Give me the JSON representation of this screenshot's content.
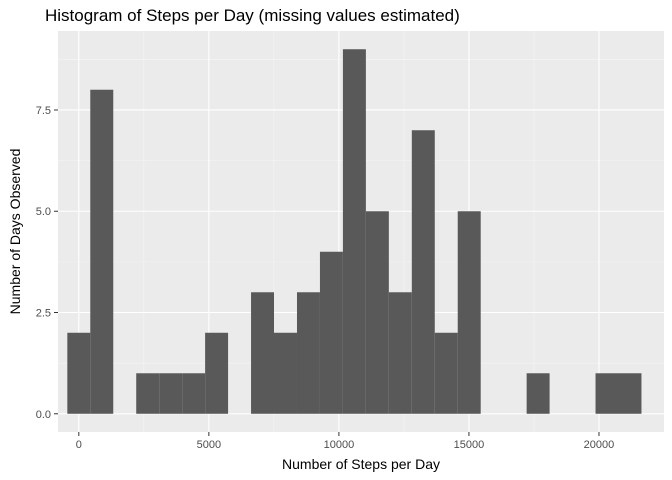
{
  "chart_data": {
    "type": "histogram",
    "title": "Histogram of Steps per Day (missing values estimated)",
    "xlabel": "Number of Steps per Day",
    "ylabel": "Number of Days Observed",
    "xlim": [
      -800,
      22500
    ],
    "ylim": [
      -0.45,
      9.45
    ],
    "x_ticks": [
      0,
      5000,
      10000,
      15000,
      20000
    ],
    "y_ticks": [
      0.0,
      2.5,
      5.0,
      7.5
    ],
    "y_tick_labels": [
      "0.0",
      "2.5",
      "5.0",
      "7.5"
    ],
    "bin_width": 883,
    "bins": [
      {
        "center": 0,
        "count": 2
      },
      {
        "center": 883,
        "count": 8
      },
      {
        "center": 1766,
        "count": 0
      },
      {
        "center": 2649,
        "count": 1
      },
      {
        "center": 3532,
        "count": 1
      },
      {
        "center": 4415,
        "count": 1
      },
      {
        "center": 5298,
        "count": 2
      },
      {
        "center": 6181,
        "count": 0
      },
      {
        "center": 7064,
        "count": 3
      },
      {
        "center": 7947,
        "count": 2
      },
      {
        "center": 8830,
        "count": 3
      },
      {
        "center": 9713,
        "count": 4
      },
      {
        "center": 10596,
        "count": 9
      },
      {
        "center": 11479,
        "count": 5
      },
      {
        "center": 12362,
        "count": 3
      },
      {
        "center": 13245,
        "count": 7
      },
      {
        "center": 14128,
        "count": 2
      },
      {
        "center": 15011,
        "count": 5
      },
      {
        "center": 15894,
        "count": 0
      },
      {
        "center": 16777,
        "count": 0
      },
      {
        "center": 17660,
        "count": 1
      },
      {
        "center": 18543,
        "count": 0
      },
      {
        "center": 19426,
        "count": 0
      },
      {
        "center": 20309,
        "count": 1
      },
      {
        "center": 21192,
        "count": 1
      }
    ],
    "grid": true,
    "colors": {
      "bar": "#595959",
      "panel": "#ebebeb",
      "grid_major": "#ffffff",
      "grid_minor": "#f5f5f5",
      "tick": "#333333"
    }
  }
}
